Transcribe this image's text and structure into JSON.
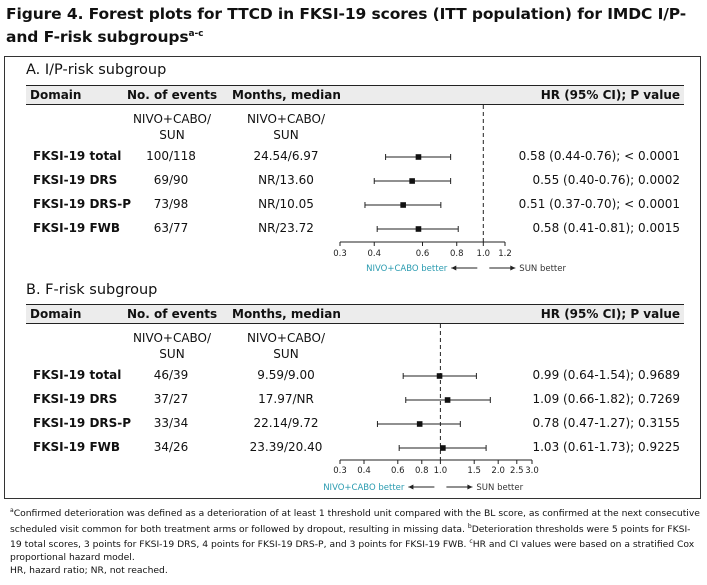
{
  "title": "Figure 4. Forest plots for TTCD in FKSI-19 scores (ITT population) for IMDC I/P- and F-risk subgroups",
  "title_sup": "a-c",
  "panels": [
    {
      "title": "A. I/P-risk subgroup",
      "headers": {
        "domain": "Domain",
        "events": "No. of events",
        "months": "Months, median",
        "hr": "HR (95% CI); P value"
      },
      "sub_events": [
        "NIVO+CABO/",
        "SUN"
      ],
      "sub_months": [
        "NIVO+CABO/",
        "SUN"
      ],
      "rows": [
        {
          "domain": "FKSI-19 total",
          "events": "100/118",
          "months": "24.54/6.97",
          "hr": "0.58 (0.44-0.76); < 0.0001"
        },
        {
          "domain": "FKSI-19 DRS",
          "events": "69/90",
          "months": "NR/13.60",
          "hr": "0.55 (0.40-0.76); 0.0002"
        },
        {
          "domain": "FKSI-19 DRS-P",
          "events": "73/98",
          "months": "NR/10.05",
          "hr": "0.51 (0.37-0.70); < 0.0001"
        },
        {
          "domain": "FKSI-19 FWB",
          "events": "63/77",
          "months": "NR/23.72",
          "hr": "0.58 (0.41-0.81); 0.0015"
        }
      ],
      "ticks": [
        "0.3",
        "0.4",
        "0.6",
        "0.8",
        "1.0",
        "1.2"
      ],
      "better_left": "NIVO+CABO better",
      "better_right": "SUN better"
    },
    {
      "title": "B. F-risk subgroup",
      "headers": {
        "domain": "Domain",
        "events": "No. of events",
        "months": "Months, median",
        "hr": "HR (95% CI); P value"
      },
      "sub_events": [
        "NIVO+CABO/",
        "SUN"
      ],
      "sub_months": [
        "NIVO+CABO/",
        "SUN"
      ],
      "rows": [
        {
          "domain": "FKSI-19 total",
          "events": "46/39",
          "months": "9.59/9.00",
          "hr": "0.99 (0.64-1.54); 0.9689"
        },
        {
          "domain": "FKSI-19 DRS",
          "events": "37/27",
          "months": "17.97/NR",
          "hr": "1.09 (0.66-1.82); 0.7269"
        },
        {
          "domain": "FKSI-19 DRS-P",
          "events": "33/34",
          "months": "22.14/9.72",
          "hr": "0.78 (0.47-1.27); 0.3155"
        },
        {
          "domain": "FKSI-19 FWB",
          "events": "34/26",
          "months": "23.39/20.40",
          "hr": "1.03 (0.61-1.73); 0.9225"
        }
      ],
      "ticks": [
        "0.3",
        "0.4",
        "0.6",
        "0.8",
        "1.0",
        "1.5",
        "2.0",
        "2.5",
        "3.0"
      ],
      "better_left": "NIVO+CABO better",
      "better_right": "SUN better"
    }
  ],
  "footnote": [
    {
      "sup": "a",
      "text": "Confirmed deterioration was defined as a deterioration of at least 1 threshold unit compared with the BL score, as confirmed at the next consecutive scheduled visit common for both treatment arms or followed by dropout, resulting in missing data. "
    },
    {
      "sup": "b",
      "text": "Deterioration thresholds were 5 points for FKSI-19 total scores, 3 points for FKSI-19 DRS, 4 points for FKSI-19 DRS-P, and 3 points for FKSI-19 FWB. "
    },
    {
      "sup": "c",
      "text": "HR and CI values were based on a stratified Cox proportional hazard model."
    }
  ],
  "abbrev": "HR, hazard ratio; NR, not reached.",
  "colors": {
    "accent": "#2a9bb0",
    "header_bg": "#ececec",
    "text": "#111111"
  },
  "chart_data": [
    {
      "type": "forest",
      "xscale": "log",
      "xlim": [
        0.3,
        1.2
      ],
      "reference": 1.0,
      "xticks": [
        0.3,
        0.4,
        0.6,
        0.8,
        1.0,
        1.2
      ],
      "categories": [
        "FKSI-19 total",
        "FKSI-19 DRS",
        "FKSI-19 DRS-P",
        "FKSI-19 FWB"
      ],
      "hr": [
        0.58,
        0.55,
        0.51,
        0.58
      ],
      "lower": [
        0.44,
        0.4,
        0.37,
        0.41
      ],
      "upper": [
        0.76,
        0.76,
        0.7,
        0.81
      ]
    },
    {
      "type": "forest",
      "xscale": "log",
      "xlim": [
        0.3,
        3.0
      ],
      "reference": 1.0,
      "xticks": [
        0.3,
        0.4,
        0.6,
        0.8,
        1.0,
        1.5,
        2.0,
        2.5,
        3.0
      ],
      "categories": [
        "FKSI-19 total",
        "FKSI-19 DRS",
        "FKSI-19 DRS-P",
        "FKSI-19 FWB"
      ],
      "hr": [
        0.99,
        1.09,
        0.78,
        1.03
      ],
      "lower": [
        0.64,
        0.66,
        0.47,
        0.61
      ],
      "upper": [
        1.54,
        1.82,
        1.27,
        1.73
      ]
    }
  ]
}
